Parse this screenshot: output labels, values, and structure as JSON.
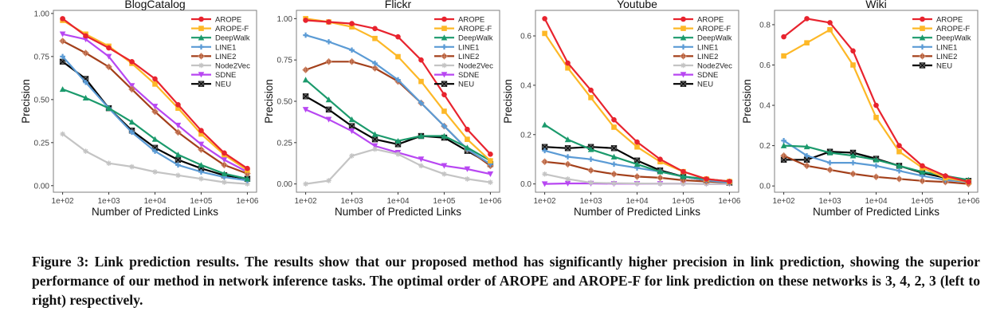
{
  "colors": {
    "AROPE": "#e8232e",
    "AROPE-F": "#fdb827",
    "DeepWalk": "#1b9a6c",
    "LINE1": "#5b9bd5",
    "LINE2": "#a3401b",
    "Node2Vec": "#c4c4c4",
    "SDNE": "#b847f2",
    "NEU": "#000000"
  },
  "chart_data": [
    {
      "type": "line",
      "title": "BlogCatalog",
      "xlabel": "Number of Predicted Links",
      "ylabel": "Precision",
      "xscale": "log",
      "x": [
        100,
        316,
        1000,
        3162,
        10000,
        31623,
        100000,
        316228,
        1000000
      ],
      "xticks": [
        100,
        1000,
        10000,
        100000,
        1000000
      ],
      "xtick_labels": [
        "1e+02",
        "1e+03",
        "1e+04",
        "1e+05",
        "1e+06"
      ],
      "yticks": [
        0,
        0.25,
        0.5,
        0.75,
        1.0
      ],
      "ytick_labels": [
        "0.00",
        "0.25",
        "0.50",
        "0.75",
        "1.00"
      ],
      "legend": "top-right",
      "series": [
        {
          "name": "AROPE",
          "values": [
            0.97,
            0.87,
            0.8,
            0.72,
            0.62,
            0.47,
            0.32,
            0.19,
            0.1
          ]
        },
        {
          "name": "AROPE-F",
          "values": [
            0.96,
            0.88,
            0.81,
            0.71,
            0.59,
            0.45,
            0.3,
            0.18,
            0.09
          ]
        },
        {
          "name": "DeepWalk",
          "values": [
            0.56,
            0.51,
            0.45,
            0.37,
            0.27,
            0.18,
            0.12,
            0.07,
            0.04
          ]
        },
        {
          "name": "LINE1",
          "values": [
            0.75,
            0.6,
            0.45,
            0.31,
            0.2,
            0.12,
            0.08,
            0.05,
            0.03
          ]
        },
        {
          "name": "LINE2",
          "values": [
            0.84,
            0.77,
            0.69,
            0.56,
            0.43,
            0.31,
            0.21,
            0.12,
            0.07
          ]
        },
        {
          "name": "Node2Vec",
          "values": [
            0.3,
            0.2,
            0.13,
            0.11,
            0.08,
            0.06,
            0.04,
            0.02,
            0.01
          ]
        },
        {
          "name": "SDNE",
          "values": [
            0.88,
            0.85,
            0.75,
            0.58,
            0.46,
            0.35,
            0.24,
            0.15,
            0.08
          ]
        },
        {
          "name": "NEU",
          "values": [
            0.72,
            0.62,
            0.45,
            0.32,
            0.22,
            0.15,
            0.1,
            0.06,
            0.04
          ]
        }
      ]
    },
    {
      "type": "line",
      "title": "Flickr",
      "xlabel": "Number of Predicted Links",
      "ylabel": "Precision",
      "xscale": "log",
      "x": [
        100,
        316,
        1000,
        3162,
        10000,
        31623,
        100000,
        316228,
        1000000
      ],
      "xticks": [
        100,
        1000,
        10000,
        100000,
        1000000
      ],
      "xtick_labels": [
        "1e+02",
        "1e+03",
        "1e+04",
        "1e+05",
        "1e+06"
      ],
      "yticks": [
        0,
        0.25,
        0.5,
        0.75,
        1.0
      ],
      "ytick_labels": [
        "0.00",
        "0.25",
        "0.50",
        "0.75",
        "1.00"
      ],
      "legend": "top-right",
      "series": [
        {
          "name": "AROPE",
          "values": [
            0.99,
            0.98,
            0.97,
            0.94,
            0.89,
            0.75,
            0.54,
            0.33,
            0.18
          ]
        },
        {
          "name": "AROPE-F",
          "values": [
            1.0,
            0.98,
            0.95,
            0.88,
            0.77,
            0.62,
            0.44,
            0.27,
            0.14
          ]
        },
        {
          "name": "DeepWalk",
          "values": [
            0.63,
            0.51,
            0.39,
            0.3,
            0.26,
            0.29,
            0.29,
            0.22,
            0.14
          ]
        },
        {
          "name": "LINE1",
          "values": [
            0.9,
            0.86,
            0.81,
            0.73,
            0.63,
            0.49,
            0.35,
            0.21,
            0.12
          ]
        },
        {
          "name": "LINE2",
          "values": [
            0.69,
            0.74,
            0.74,
            0.7,
            0.62,
            0.49,
            0.35,
            0.21,
            0.11
          ]
        },
        {
          "name": "Node2Vec",
          "values": [
            0.0,
            0.02,
            0.17,
            0.21,
            0.18,
            0.11,
            0.06,
            0.03,
            0.01
          ]
        },
        {
          "name": "SDNE",
          "values": [
            0.45,
            0.39,
            0.32,
            0.23,
            0.19,
            0.15,
            0.11,
            0.09,
            0.06
          ]
        },
        {
          "name": "NEU",
          "values": [
            0.53,
            0.45,
            0.35,
            0.27,
            0.24,
            0.29,
            0.28,
            0.2,
            0.12
          ]
        }
      ]
    },
    {
      "type": "line",
      "title": "Youtube",
      "xlabel": "Number of Predicted Links",
      "ylabel": "Precision",
      "xscale": "log",
      "x": [
        100,
        316,
        1000,
        3162,
        10000,
        31623,
        100000,
        316228,
        1000000
      ],
      "xticks": [
        100,
        1000,
        10000,
        100000,
        1000000
      ],
      "xtick_labels": [
        "1e+02",
        "1e+03",
        "1e+04",
        "1e+05",
        "1e+06"
      ],
      "yticks": [
        0,
        0.2,
        0.4,
        0.6
      ],
      "ytick_labels": [
        "0.0",
        "0.2",
        "0.4",
        "0.6"
      ],
      "legend": "top-right",
      "series": [
        {
          "name": "AROPE",
          "values": [
            0.67,
            0.49,
            0.38,
            0.26,
            0.17,
            0.1,
            0.05,
            0.02,
            0.01
          ]
        },
        {
          "name": "AROPE-F",
          "values": [
            0.61,
            0.47,
            0.35,
            0.23,
            0.15,
            0.09,
            0.05,
            0.02,
            0.01
          ]
        },
        {
          "name": "DeepWalk",
          "values": [
            0.24,
            0.18,
            0.14,
            0.11,
            0.08,
            0.05,
            0.03,
            0.02,
            0.01
          ]
        },
        {
          "name": "LINE1",
          "values": [
            0.135,
            0.11,
            0.1,
            0.08,
            0.065,
            0.05,
            0.03,
            0.015,
            0.005
          ]
        },
        {
          "name": "LINE2",
          "values": [
            0.09,
            0.08,
            0.055,
            0.04,
            0.03,
            0.025,
            0.015,
            0.01,
            0.005
          ]
        },
        {
          "name": "Node2Vec",
          "values": [
            0.04,
            0.02,
            0.005,
            0.003,
            0.002,
            0.001,
            0.001,
            0.0,
            0.0
          ]
        },
        {
          "name": "SDNE",
          "values": [
            0.0,
            0.002,
            0.002,
            0.001,
            0.001,
            0.001,
            0.001,
            0.0,
            0.0
          ]
        },
        {
          "name": "NEU",
          "values": [
            0.15,
            0.145,
            0.15,
            0.145,
            0.095,
            0.055,
            0.03,
            0.015,
            0.005
          ]
        }
      ]
    },
    {
      "type": "line",
      "title": "Wiki",
      "xlabel": "Number of Predicted Links",
      "ylabel": "Precision",
      "xscale": "log",
      "x": [
        100,
        316,
        1000,
        3162,
        10000,
        31623,
        100000,
        316228,
        1000000
      ],
      "xticks": [
        100,
        1000,
        10000,
        100000,
        1000000
      ],
      "xtick_labels": [
        "1e+02",
        "1e+03",
        "1e+04",
        "1e+05",
        "1e+06"
      ],
      "yticks": [
        0,
        0.2,
        0.4,
        0.6,
        0.8
      ],
      "ytick_labels": [
        "0.0",
        "0.2",
        "0.4",
        "0.6",
        "0.8"
      ],
      "legend": "top-right",
      "series": [
        {
          "name": "AROPE",
          "values": [
            0.74,
            0.83,
            0.81,
            0.67,
            0.4,
            0.2,
            0.1,
            0.05,
            0.02
          ]
        },
        {
          "name": "AROPE-F",
          "values": [
            0.645,
            0.71,
            0.775,
            0.6,
            0.34,
            0.17,
            0.09,
            0.04,
            0.02
          ]
        },
        {
          "name": "DeepWalk",
          "values": [
            0.2,
            0.195,
            0.165,
            0.15,
            0.13,
            0.1,
            0.07,
            0.05,
            0.03
          ]
        },
        {
          "name": "LINE1",
          "values": [
            0.225,
            0.15,
            0.115,
            0.115,
            0.1,
            0.075,
            0.05,
            0.03,
            0.02
          ]
        },
        {
          "name": "LINE2",
          "values": [
            0.15,
            0.1,
            0.08,
            0.06,
            0.045,
            0.035,
            0.025,
            0.02,
            0.01
          ]
        },
        {
          "name": "NEU",
          "values": [
            0.13,
            0.13,
            0.17,
            0.165,
            0.135,
            0.1,
            0.065,
            0.04,
            0.025
          ]
        }
      ]
    }
  ],
  "caption": "Figure 3: Link prediction results. The results show that our proposed method has significantly higher precision in link prediction, showing the superior performance of our method in network inference tasks. The optimal order of AROPE and AROPE-F for link prediction on these networks is 3, 4, 2, 3 (left to right) respectively."
}
